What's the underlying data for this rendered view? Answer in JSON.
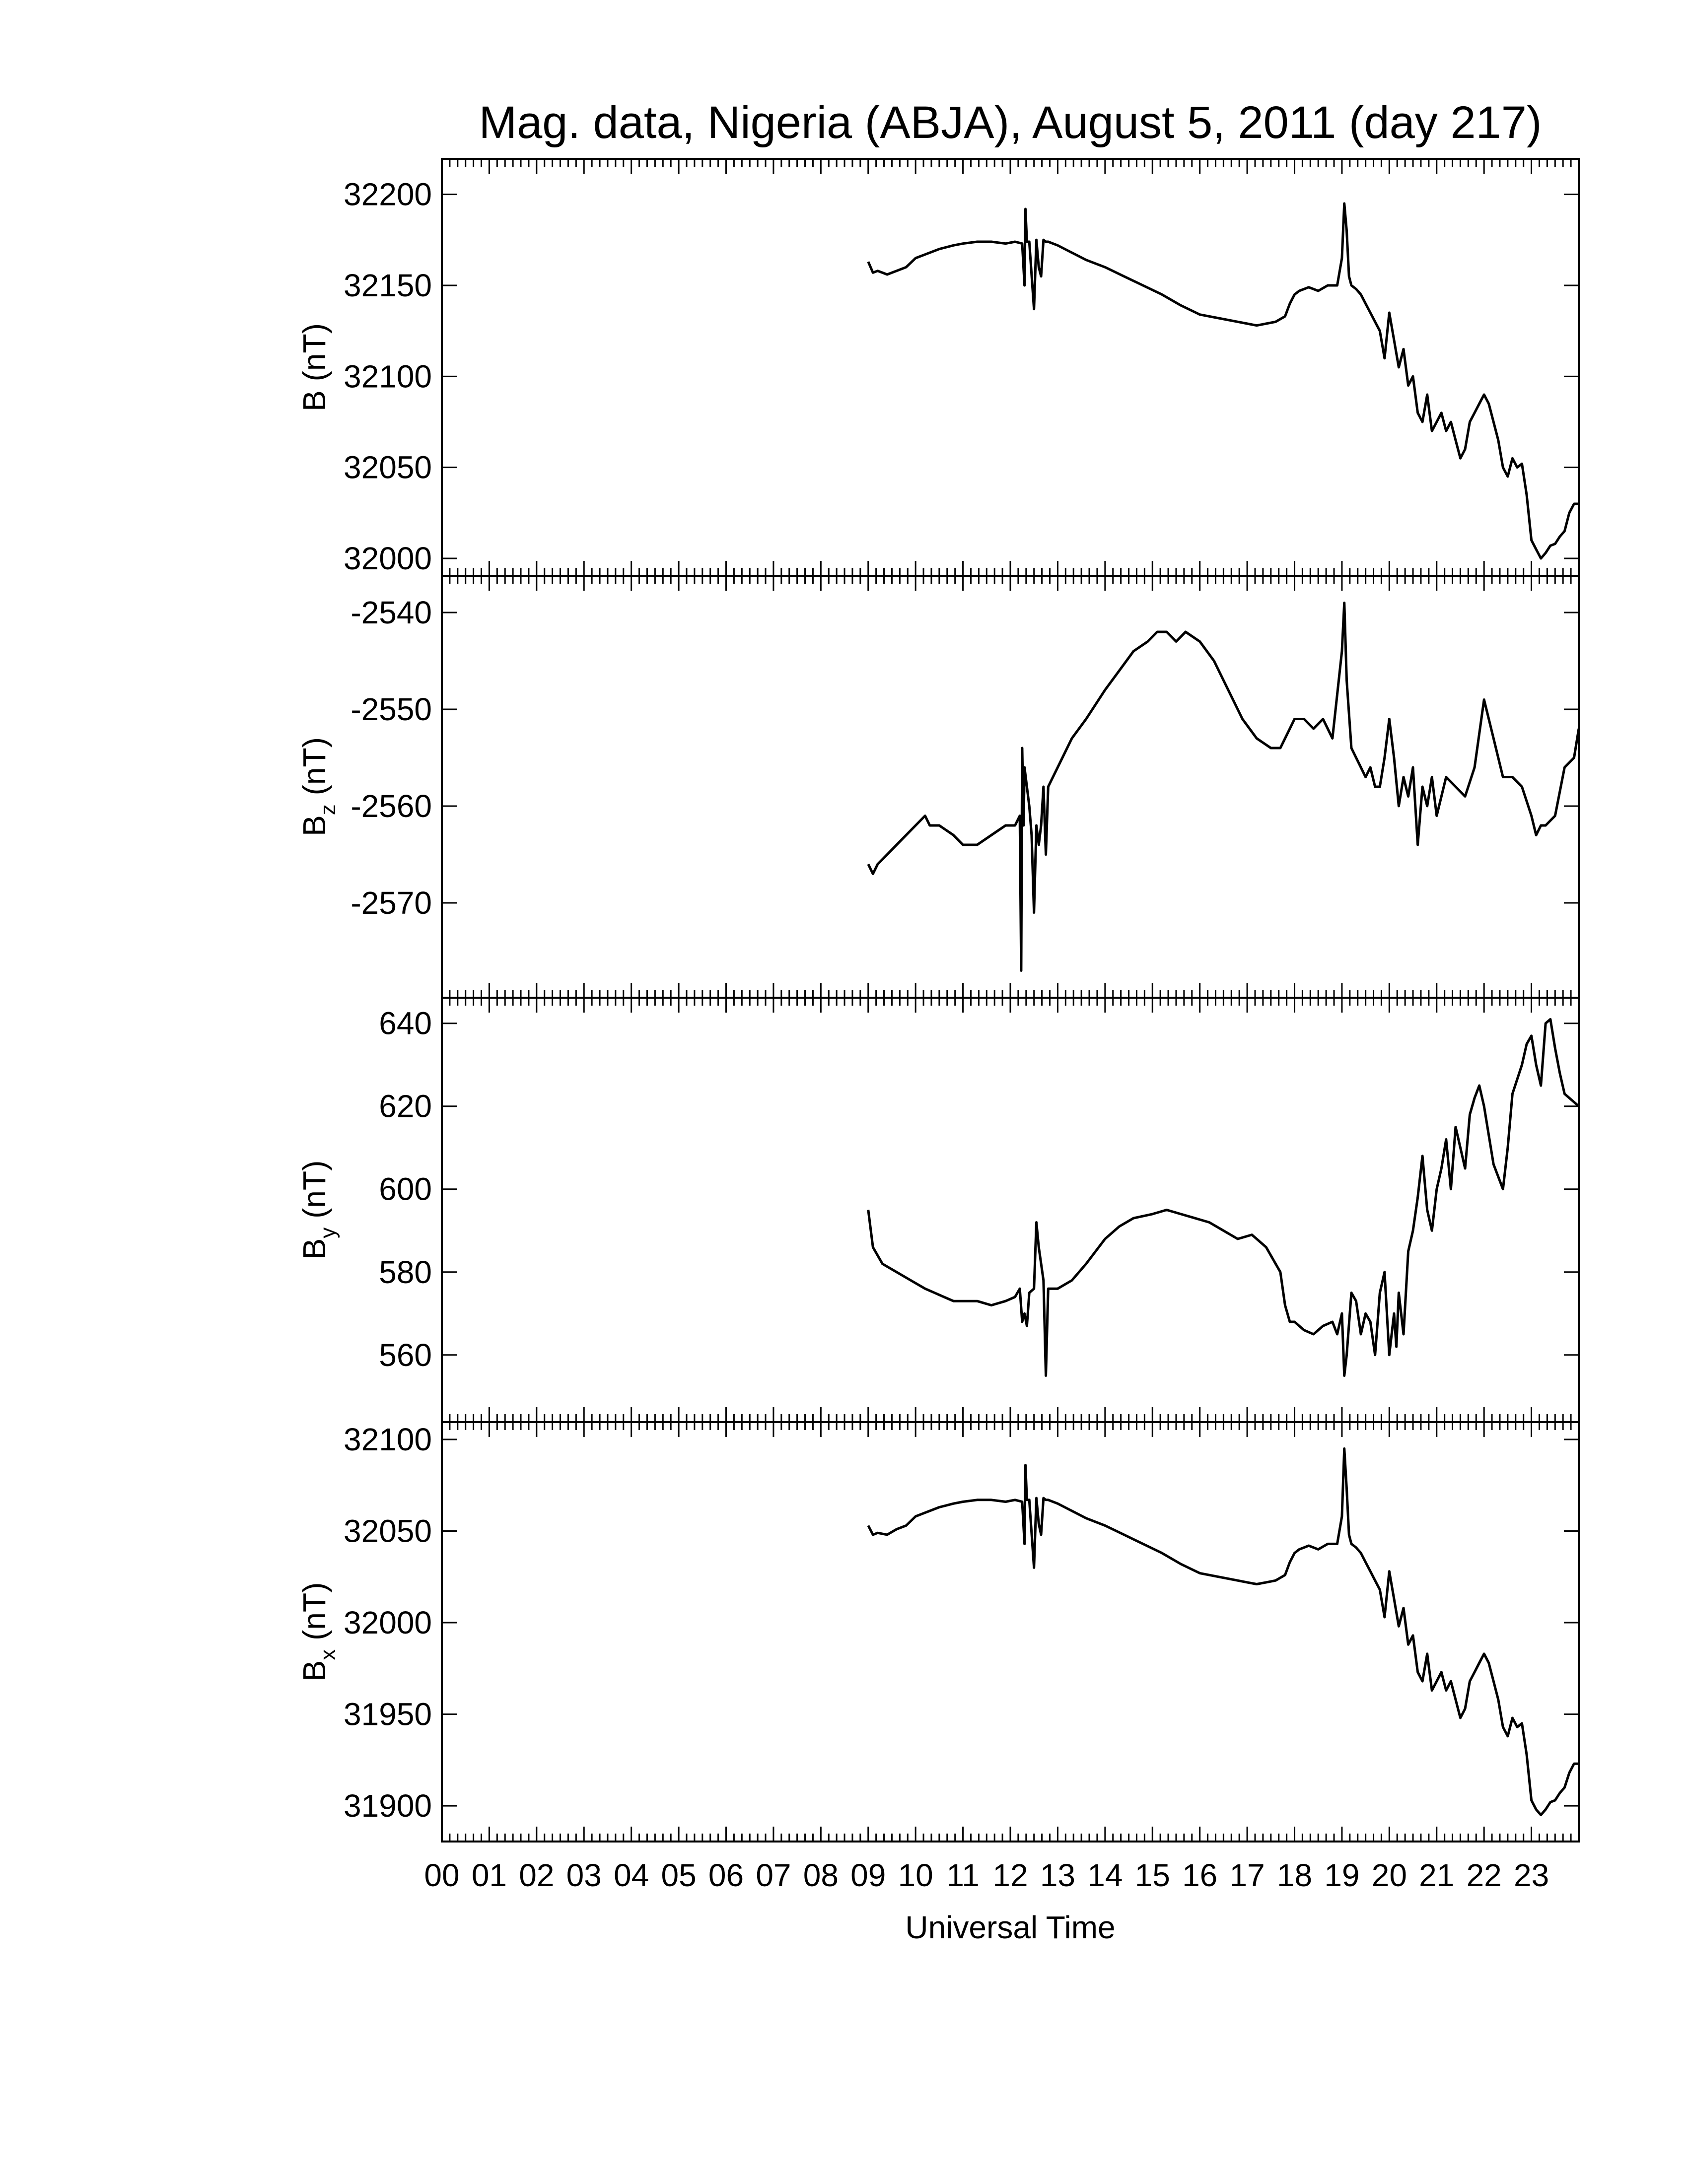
{
  "chart_data": {
    "type": "line",
    "title": "Mag. data, Nigeria (ABJA), August 5, 2011 (day 217)",
    "xlabel": "Universal Time",
    "xlim": [
      0,
      24
    ],
    "x_tick_labels": [
      "00",
      "01",
      "02",
      "03",
      "04",
      "05",
      "06",
      "07",
      "08",
      "09",
      "10",
      "11",
      "12",
      "13",
      "14",
      "15",
      "16",
      "17",
      "18",
      "19",
      "20",
      "21",
      "22",
      "23"
    ],
    "grid": false,
    "panels": [
      {
        "ylabel": "B (nT)",
        "ylabel_main": "B",
        "ylabel_sub": "",
        "ylabel_unit": " (nT)",
        "ylim": [
          32000,
          32210
        ],
        "yticks": [
          32000,
          32050,
          32100,
          32150,
          32200
        ],
        "series": [
          {
            "x": [
              9.0,
              9.1,
              9.2,
              9.4,
              9.6,
              9.8,
              10.0,
              10.2,
              10.5,
              10.8,
              11.0,
              11.3,
              11.6,
              11.9,
              12.1,
              12.25,
              12.3,
              12.32,
              12.35,
              12.4,
              12.5,
              12.55,
              12.6,
              12.65,
              12.7,
              12.75,
              12.8,
              13.0,
              13.3,
              13.6,
              14.0,
              14.4,
              14.8,
              15.2,
              15.6,
              16.0,
              16.4,
              16.8,
              17.0,
              17.2,
              17.4,
              17.6,
              17.8,
              17.9,
              18.0,
              18.1,
              18.3,
              18.5,
              18.7,
              18.9,
              19.0,
              19.05,
              19.1,
              19.15,
              19.2,
              19.3,
              19.4,
              19.5,
              19.6,
              19.7,
              19.8,
              19.9,
              20.0,
              20.1,
              20.2,
              20.3,
              20.4,
              20.5,
              20.6,
              20.7,
              20.8,
              20.9,
              21.0,
              21.1,
              21.2,
              21.3,
              21.4,
              21.5,
              21.6,
              21.7,
              21.8,
              21.9,
              22.0,
              22.1,
              22.2,
              22.3,
              22.4,
              22.5,
              22.6,
              22.7,
              22.8,
              22.9,
              23.0,
              23.1,
              23.2,
              23.3,
              23.4,
              23.5,
              23.6,
              23.7,
              23.8,
              23.9,
              24.0
            ],
            "y": [
              32163,
              32157,
              32158,
              32156,
              32158,
              32160,
              32165,
              32167,
              32170,
              32172,
              32173,
              32174,
              32174,
              32173,
              32174,
              32173,
              32150,
              32192,
              32174,
              32174,
              32137,
              32175,
              32160,
              32155,
              32175,
              32174,
              32174,
              32172,
              32168,
              32164,
              32160,
              32155,
              32150,
              32145,
              32139,
              32134,
              32132,
              32130,
              32129,
              32128,
              32129,
              32130,
              32133,
              32140,
              32145,
              32147,
              32149,
              32147,
              32150,
              32150,
              32165,
              32195,
              32180,
              32155,
              32150,
              32148,
              32145,
              32140,
              32135,
              32130,
              32125,
              32110,
              32135,
              32120,
              32105,
              32115,
              32095,
              32100,
              32080,
              32075,
              32090,
              32070,
              32075,
              32080,
              32070,
              32075,
              32065,
              32055,
              32060,
              32075,
              32080,
              32085,
              32090,
              32085,
              32075,
              32065,
              32050,
              32045,
              32055,
              32050,
              32052,
              32035,
              32010,
              32005,
              32000,
              32003,
              32007,
              32008,
              32012,
              32015,
              32025,
              32030,
              32030
            ]
          }
        ]
      },
      {
        "ylabel": "Bz (nT)",
        "ylabel_main": "B",
        "ylabel_sub": "z",
        "ylabel_unit": " (nT)",
        "ylim": [
          -2578,
          -2538
        ],
        "yticks": [
          -2570,
          -2560,
          -2550,
          -2540
        ],
        "series": [
          {
            "x": [
              9.0,
              9.1,
              9.2,
              9.4,
              9.6,
              9.8,
              10.0,
              10.2,
              10.3,
              10.5,
              10.8,
              11.0,
              11.3,
              11.6,
              11.9,
              12.1,
              12.2,
              12.23,
              12.25,
              12.28,
              12.3,
              12.35,
              12.4,
              12.45,
              12.5,
              12.55,
              12.6,
              12.65,
              12.7,
              12.75,
              12.8,
              13.0,
              13.3,
              13.6,
              14.0,
              14.3,
              14.6,
              14.9,
              15.1,
              15.3,
              15.5,
              15.7,
              16.0,
              16.3,
              16.6,
              16.9,
              17.2,
              17.5,
              17.7,
              17.9,
              18.0,
              18.2,
              18.4,
              18.6,
              18.8,
              19.0,
              19.05,
              19.1,
              19.2,
              19.3,
              19.4,
              19.5,
              19.6,
              19.7,
              19.8,
              19.9,
              20.0,
              20.1,
              20.2,
              20.3,
              20.4,
              20.5,
              20.6,
              20.7,
              20.8,
              20.9,
              21.0,
              21.2,
              21.4,
              21.6,
              21.8,
              22.0,
              22.2,
              22.4,
              22.6,
              22.8,
              23.0,
              23.1,
              23.2,
              23.3,
              23.5,
              23.7,
              23.9,
              24.0
            ],
            "y": [
              -2566,
              -2567,
              -2566,
              -2565,
              -2564,
              -2563,
              -2562,
              -2561,
              -2562,
              -2562,
              -2563,
              -2564,
              -2564,
              -2563,
              -2562,
              -2562,
              -2561,
              -2577,
              -2554,
              -2562,
              -2556,
              -2558,
              -2560,
              -2563,
              -2571,
              -2562,
              -2564,
              -2562,
              -2558,
              -2565,
              -2558,
              -2556,
              -2553,
              -2551,
              -2548,
              -2546,
              -2544,
              -2543,
              -2542,
              -2542,
              -2543,
              -2542,
              -2543,
              -2545,
              -2548,
              -2551,
              -2553,
              -2554,
              -2554,
              -2552,
              -2551,
              -2551,
              -2552,
              -2551,
              -2553,
              -2544,
              -2539,
              -2547,
              -2554,
              -2555,
              -2556,
              -2557,
              -2556,
              -2558,
              -2558,
              -2555,
              -2551,
              -2555,
              -2560,
              -2557,
              -2559,
              -2556,
              -2564,
              -2558,
              -2560,
              -2557,
              -2561,
              -2557,
              -2558,
              -2559,
              -2556,
              -2549,
              -2553,
              -2557,
              -2557,
              -2558,
              -2561,
              -2563,
              -2562,
              -2562,
              -2561,
              -2556,
              -2555,
              -2552
            ]
          }
        ]
      },
      {
        "ylabel": "By (nT)",
        "ylabel_main": "B",
        "ylabel_sub": "y",
        "ylabel_unit": " (nT)",
        "ylim": [
          548,
          642
        ],
        "yticks": [
          560,
          580,
          600,
          620,
          640
        ],
        "series": [
          {
            "x": [
              9.0,
              9.1,
              9.3,
              9.6,
              9.9,
              10.2,
              10.4,
              10.6,
              10.8,
              11.0,
              11.3,
              11.6,
              11.9,
              12.1,
              12.2,
              12.25,
              12.3,
              12.35,
              12.4,
              12.5,
              12.55,
              12.6,
              12.7,
              12.75,
              12.8,
              13.0,
              13.3,
              13.6,
              14.0,
              14.3,
              14.6,
              15.0,
              15.3,
              15.6,
              15.9,
              16.2,
              16.5,
              16.8,
              17.1,
              17.4,
              17.7,
              17.8,
              17.9,
              18.0,
              18.2,
              18.4,
              18.6,
              18.8,
              18.9,
              19.0,
              19.05,
              19.1,
              19.2,
              19.3,
              19.4,
              19.5,
              19.6,
              19.7,
              19.8,
              19.9,
              20.0,
              20.1,
              20.15,
              20.2,
              20.3,
              20.4,
              20.5,
              20.6,
              20.7,
              20.8,
              20.9,
              21.0,
              21.1,
              21.2,
              21.3,
              21.4,
              21.5,
              21.6,
              21.7,
              21.8,
              21.9,
              22.0,
              22.2,
              22.4,
              22.5,
              22.6,
              22.8,
              22.9,
              23.0,
              23.1,
              23.2,
              23.3,
              23.4,
              23.5,
              23.6,
              23.7,
              23.8,
              24.0
            ],
            "y": [
              595,
              586,
              582,
              580,
              578,
              576,
              575,
              574,
              573,
              573,
              573,
              572,
              573,
              574,
              576,
              568,
              570,
              567,
              575,
              576,
              592,
              586,
              578,
              555,
              576,
              576,
              578,
              582,
              588,
              591,
              593,
              594,
              595,
              594,
              593,
              592,
              590,
              588,
              589,
              586,
              580,
              572,
              568,
              568,
              566,
              565,
              567,
              568,
              565,
              570,
              555,
              560,
              575,
              573,
              565,
              570,
              568,
              560,
              575,
              580,
              560,
              570,
              562,
              575,
              565,
              585,
              590,
              598,
              608,
              595,
              590,
              600,
              605,
              612,
              600,
              615,
              610,
              605,
              618,
              622,
              625,
              620,
              606,
              600,
              610,
              623,
              630,
              635,
              637,
              630,
              625,
              640,
              641,
              634,
              628,
              623,
              622,
              620
            ]
          }
        ]
      },
      {
        "ylabel": "Bx (nT)",
        "ylabel_main": "B",
        "ylabel_sub": "x",
        "ylabel_unit": " (nT)",
        "ylim": [
          31890,
          32100
        ],
        "yticks": [
          31900,
          31950,
          32000,
          32050,
          32100
        ],
        "series": [
          {
            "x": [
              9.0,
              9.1,
              9.2,
              9.4,
              9.6,
              9.8,
              10.0,
              10.2,
              10.5,
              10.8,
              11.0,
              11.3,
              11.6,
              11.9,
              12.1,
              12.25,
              12.3,
              12.32,
              12.35,
              12.4,
              12.5,
              12.55,
              12.6,
              12.65,
              12.7,
              12.75,
              12.8,
              13.0,
              13.3,
              13.6,
              14.0,
              14.4,
              14.8,
              15.2,
              15.6,
              16.0,
              16.4,
              16.8,
              17.0,
              17.2,
              17.4,
              17.6,
              17.8,
              17.9,
              18.0,
              18.1,
              18.3,
              18.5,
              18.7,
              18.9,
              19.0,
              19.05,
              19.1,
              19.15,
              19.2,
              19.3,
              19.4,
              19.5,
              19.6,
              19.7,
              19.8,
              19.9,
              20.0,
              20.1,
              20.2,
              20.3,
              20.4,
              20.5,
              20.6,
              20.7,
              20.8,
              20.9,
              21.0,
              21.1,
              21.2,
              21.3,
              21.4,
              21.5,
              21.6,
              21.7,
              21.8,
              21.9,
              22.0,
              22.1,
              22.2,
              22.3,
              22.4,
              22.5,
              22.6,
              22.7,
              22.8,
              22.9,
              23.0,
              23.1,
              23.2,
              23.3,
              23.4,
              23.5,
              23.6,
              23.7,
              23.8,
              23.9,
              24.0
            ],
            "y": [
              32053,
              32048,
              32049,
              32048,
              32051,
              32053,
              32058,
              32060,
              32063,
              32065,
              32066,
              32067,
              32067,
              32066,
              32067,
              32066,
              32043,
              32086,
              32067,
              32067,
              32030,
              32068,
              32054,
              32048,
              32068,
              32067,
              32067,
              32065,
              32061,
              32057,
              32053,
              32048,
              32043,
              32038,
              32032,
              32027,
              32025,
              32023,
              32022,
              32021,
              32022,
              32023,
              32026,
              32033,
              32038,
              32040,
              32042,
              32040,
              32043,
              32043,
              32058,
              32095,
              32073,
              32048,
              32043,
              32041,
              32038,
              32033,
              32028,
              32023,
              32018,
              32003,
              32028,
              32013,
              31998,
              32008,
              31988,
              31993,
              31973,
              31968,
              31983,
              31963,
              31968,
              31973,
              31963,
              31968,
              31958,
              31948,
              31953,
              31968,
              31973,
              31978,
              31983,
              31978,
              31968,
              31958,
              31943,
              31938,
              31948,
              31943,
              31945,
              31928,
              31903,
              31898,
              31895,
              31898,
              31902,
              31903,
              31907,
              31910,
              31918,
              31923,
              31923
            ]
          }
        ]
      }
    ]
  }
}
